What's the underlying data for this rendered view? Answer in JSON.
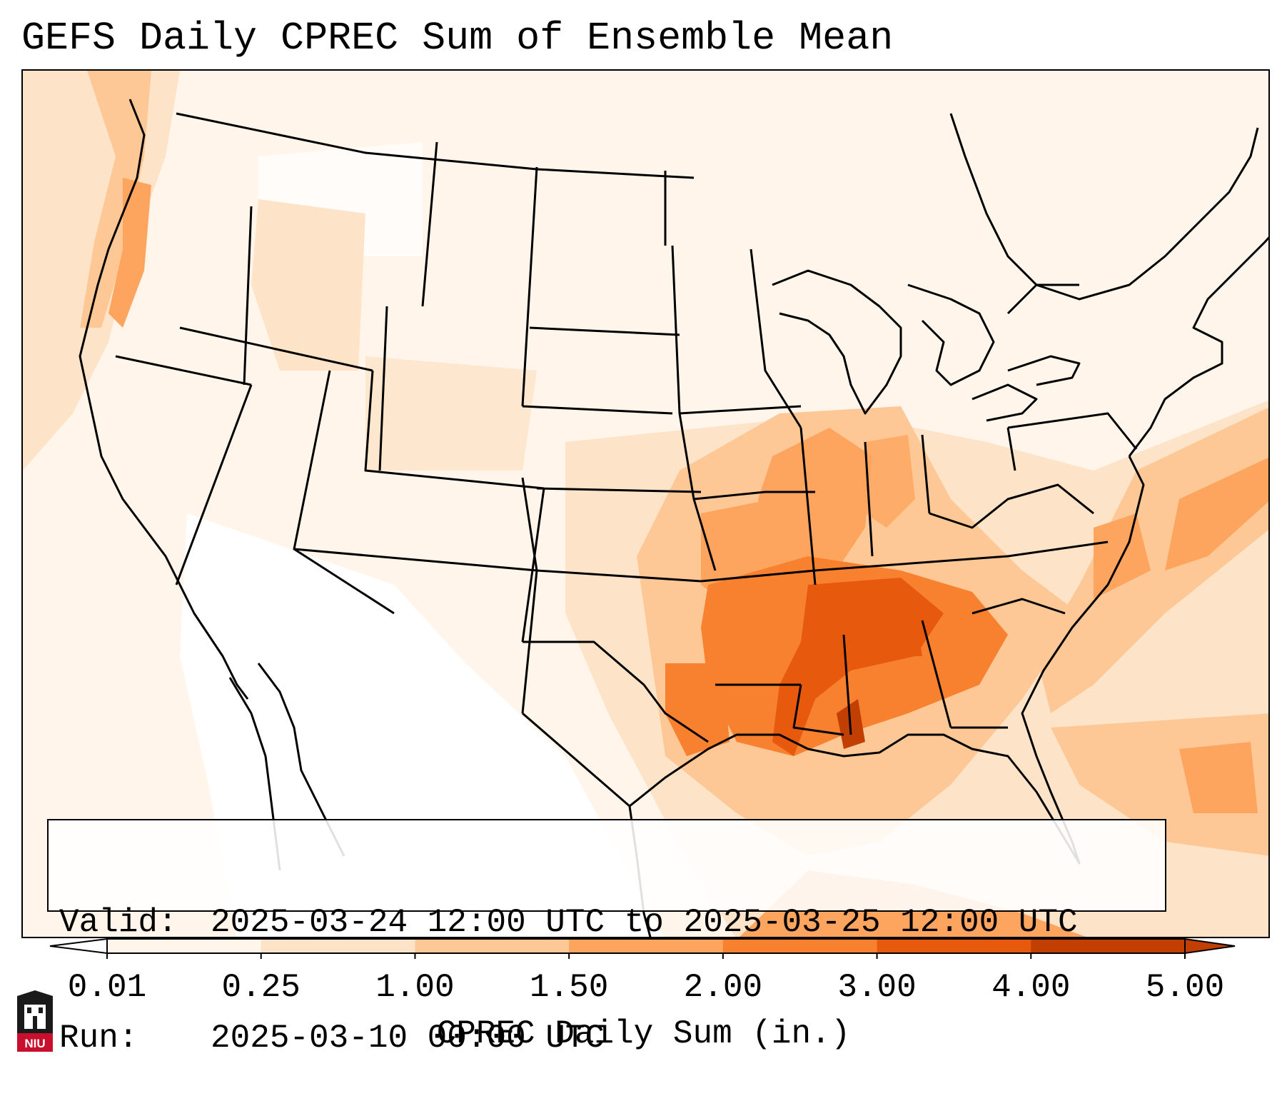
{
  "title": "GEFS Daily CPREC Sum of Ensemble Mean",
  "info": {
    "valid_label": "Valid:",
    "valid_value": "2025-03-24 12:00 UTC to 2025-03-25 12:00 UTC",
    "run_label": "Run:",
    "run_value": "2025-03-10 00:00 UTC"
  },
  "colorbar": {
    "label": "CPREC Daily Sum (in.)",
    "ticks": [
      "0.01",
      "0.25",
      "1.00",
      "1.50",
      "2.00",
      "3.00",
      "4.00",
      "5.00"
    ],
    "colors": [
      "#fff5eb",
      "#fde4c8",
      "#fdc895",
      "#fda55e",
      "#f8812f",
      "#e75a0d",
      "#c23f04"
    ],
    "extend": "both"
  },
  "logo": {
    "text": "NIU",
    "color": "#c8102e"
  },
  "map": {
    "projection": "Lambert conformal, CONUS",
    "heavy_precip_region": "Lower Mississippi Valley / Tennessee Valley / Gulf Coast"
  }
}
